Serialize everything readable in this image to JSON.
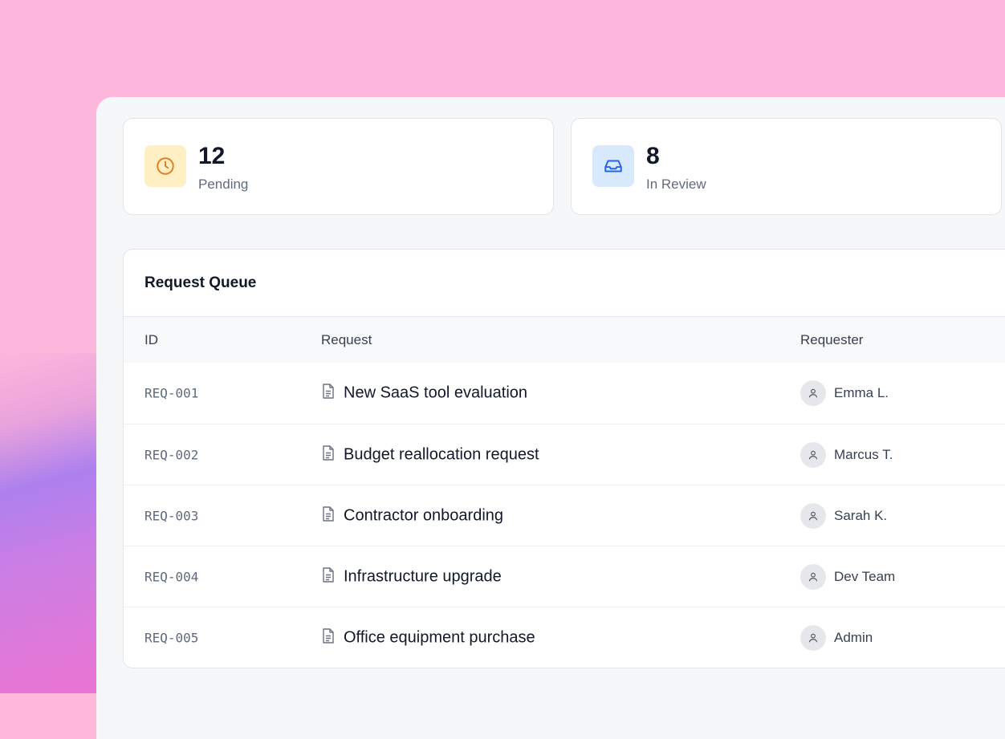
{
  "stats": [
    {
      "value": "12",
      "label": "Pending",
      "icon": "clock-icon",
      "icon_bg": "#fef0c4",
      "icon_color": "#ea7a1f"
    },
    {
      "value": "8",
      "label": "In Review",
      "icon": "inbox-icon",
      "icon_bg": "#d8e8fd",
      "icon_color": "#2563eb"
    }
  ],
  "queue": {
    "title": "Request Queue",
    "columns": [
      "ID",
      "Request",
      "Requester"
    ],
    "rows": [
      {
        "id": "REQ-001",
        "request": "New SaaS tool evaluation",
        "requester": "Emma L."
      },
      {
        "id": "REQ-002",
        "request": "Budget reallocation request",
        "requester": "Marcus T."
      },
      {
        "id": "REQ-003",
        "request": "Contractor onboarding",
        "requester": "Sarah K."
      },
      {
        "id": "REQ-004",
        "request": "Infrastructure upgrade",
        "requester": "Dev Team"
      },
      {
        "id": "REQ-005",
        "request": "Office equipment purchase",
        "requester": "Admin"
      }
    ]
  }
}
